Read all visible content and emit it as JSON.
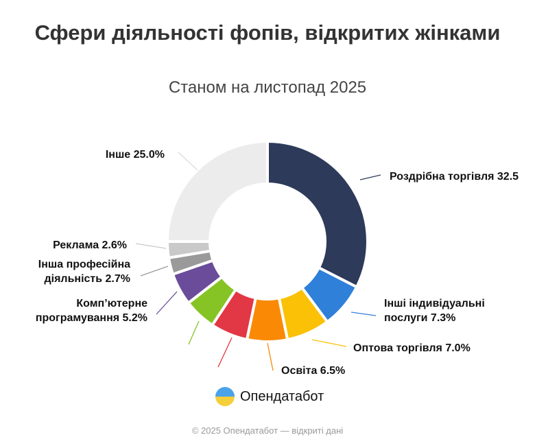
{
  "title": "Сфери діяльності фопів, відкритих жінками",
  "subtitle": "Станом на листопад 2025",
  "chart_data": {
    "type": "pie",
    "donut": true,
    "title": "Сфери діяльності фопів, відкритих жінками",
    "subtitle": "Станом на листопад 2025",
    "slices": [
      {
        "label": "Роздрібна торгівля 32.5",
        "value": 32.5,
        "color": "#2d3a5a"
      },
      {
        "label": "Інші індивідуальні послуги 7.3%",
        "value": 7.3,
        "color": "#2f80d8"
      },
      {
        "label": "Оптова торгівля 7.0%",
        "value": 7.0,
        "color": "#fbc107"
      },
      {
        "label": "Освіта 6.5%",
        "value": 6.5,
        "color": "#fa8a05"
      },
      {
        "label": "",
        "value": 6.0,
        "color": "#e23745"
      },
      {
        "label": "",
        "value": 5.2,
        "color": "#86c425"
      },
      {
        "label": "Комп’ютерне програмування 5.2%",
        "value": 5.2,
        "color": "#6b4c9a"
      },
      {
        "label": "Інша професійна діяльність 2.7%",
        "value": 2.7,
        "color": "#9a9a9a"
      },
      {
        "label": "Реклама 2.6%",
        "value": 2.6,
        "color": "#c9c9c9"
      },
      {
        "label": "Інше 25.0%",
        "value": 25.0,
        "color": "#ececec"
      }
    ],
    "legend": "none"
  },
  "logo": {
    "name": "Опендатабот"
  },
  "footer": "© 2025 Опендатабот — відкриті дані"
}
